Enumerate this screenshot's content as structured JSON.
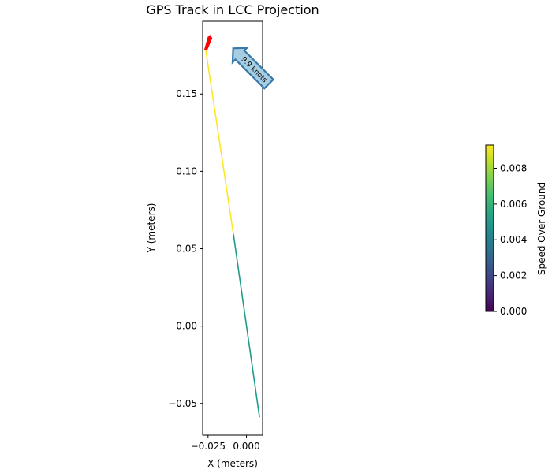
{
  "chart_data": {
    "type": "line",
    "title": "GPS Track in LCC Projection",
    "xlabel": "X (meters)",
    "ylabel": "Y (meters)",
    "xlim": [
      -0.0285,
      0.0105
    ],
    "ylim": [
      -0.0705,
      0.197
    ],
    "xticks": [
      -0.025,
      0.0
    ],
    "xtick_labels": [
      "−0.025",
      "0.000"
    ],
    "yticks": [
      -0.05,
      0.0,
      0.05,
      0.1,
      0.15
    ],
    "ytick_labels": [
      "−0.05",
      "0.00",
      "0.05",
      "0.10",
      "0.15"
    ],
    "grid": false,
    "track_segments": [
      {
        "x": [
          0.0085,
          -0.0085
        ],
        "y": [
          -0.0589,
          0.0595
        ],
        "speed": 0.0051
      },
      {
        "x": [
          -0.0085,
          -0.0265
        ],
        "y": [
          0.0595,
          0.1785
        ],
        "speed": 0.0093
      }
    ],
    "heading_arrow": {
      "x": -0.0265,
      "y": 0.1785,
      "dx": 0.0028,
      "dy": 0.008,
      "color": "#ff0000"
    },
    "annotation": {
      "text": "9.9 knots",
      "x": 0.0,
      "y": 0.175,
      "rotation_deg": -45,
      "face_color": "#a6cee3",
      "edge_color": "#3a78a8"
    },
    "colorbar": {
      "label": "Speed Over Ground",
      "colormap": "viridis",
      "range": [
        0.0,
        0.0093
      ],
      "ticks": [
        0.0,
        0.002,
        0.004,
        0.006,
        0.008
      ],
      "tick_labels": [
        "0.000",
        "0.002",
        "0.004",
        "0.006",
        "0.008"
      ]
    }
  }
}
